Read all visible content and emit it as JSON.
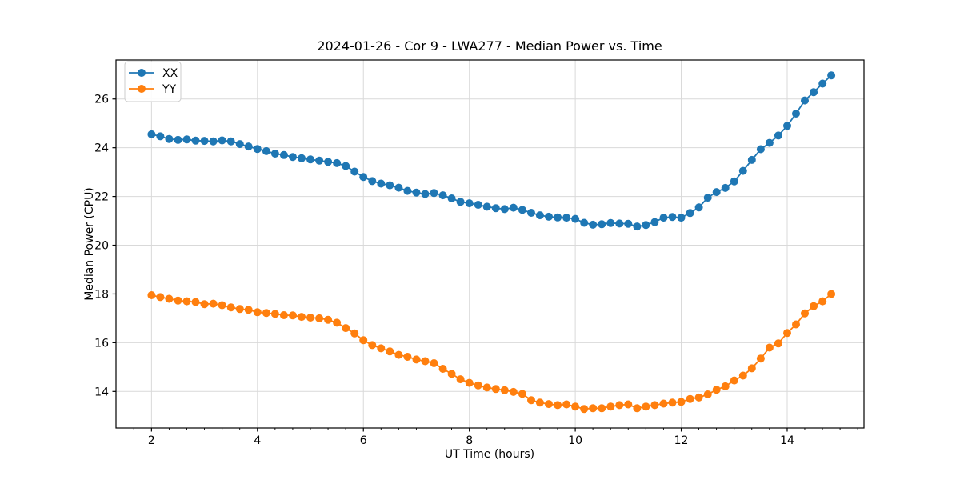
{
  "chart_data": {
    "type": "line",
    "title": "2024-01-26 - Cor 9 - LWA277 - Median Power vs. Time",
    "xlabel": "UT Time (hours)",
    "ylabel": "Median Power (CPU)",
    "xlim": [
      1.33,
      15.45
    ],
    "ylim": [
      12.5,
      27.6
    ],
    "xticks": [
      2,
      4,
      6,
      8,
      10,
      12,
      14
    ],
    "yticks": [
      14,
      16,
      18,
      20,
      22,
      24,
      26
    ],
    "minor_xtick_step": 0.3333,
    "grid": true,
    "grid_color": "#d9d9d9",
    "background_color": "#ffffff",
    "spine_color": "#000000",
    "marker": "circle",
    "marker_radius": 5,
    "line_width": 1.8,
    "legend": {
      "position": "upper left",
      "entries": [
        "XX",
        "YY"
      ]
    },
    "x": [
      2.0,
      2.167,
      2.333,
      2.5,
      2.667,
      2.833,
      3.0,
      3.167,
      3.333,
      3.5,
      3.667,
      3.833,
      4.0,
      4.167,
      4.333,
      4.5,
      4.667,
      4.833,
      5.0,
      5.167,
      5.333,
      5.5,
      5.667,
      5.833,
      6.0,
      6.167,
      6.333,
      6.5,
      6.667,
      6.833,
      7.0,
      7.167,
      7.333,
      7.5,
      7.667,
      7.833,
      8.0,
      8.167,
      8.333,
      8.5,
      8.667,
      8.833,
      9.0,
      9.167,
      9.333,
      9.5,
      9.667,
      9.833,
      10.0,
      10.167,
      10.333,
      10.5,
      10.667,
      10.833,
      11.0,
      11.167,
      11.333,
      11.5,
      11.667,
      11.833,
      12.0,
      12.167,
      12.333,
      12.5,
      12.667,
      12.833,
      13.0,
      13.167,
      13.333,
      13.5,
      13.667,
      13.833,
      14.0,
      14.167,
      14.333,
      14.5,
      14.667,
      14.833
    ],
    "series": [
      {
        "name": "XX",
        "color": "#1f77b4",
        "values": [
          24.55,
          24.47,
          24.36,
          24.32,
          24.34,
          24.29,
          24.28,
          24.26,
          24.3,
          24.26,
          24.15,
          24.05,
          23.95,
          23.86,
          23.76,
          23.7,
          23.62,
          23.57,
          23.52,
          23.47,
          23.42,
          23.37,
          23.25,
          23.02,
          22.8,
          22.63,
          22.53,
          22.46,
          22.36,
          22.23,
          22.16,
          22.1,
          22.14,
          22.05,
          21.92,
          21.78,
          21.72,
          21.66,
          21.58,
          21.52,
          21.48,
          21.54,
          21.45,
          21.33,
          21.23,
          21.17,
          21.14,
          21.13,
          21.08,
          20.92,
          20.84,
          20.86,
          20.91,
          20.89,
          20.88,
          20.77,
          20.83,
          20.95,
          21.13,
          21.16,
          21.13,
          21.32,
          21.55,
          21.95,
          22.18,
          22.35,
          22.62,
          23.05,
          23.5,
          23.94,
          24.2,
          24.5,
          24.9,
          25.4,
          25.94,
          26.28,
          26.63,
          26.97
        ]
      },
      {
        "name": "YY",
        "color": "#ff7f0e",
        "values": [
          17.95,
          17.87,
          17.8,
          17.73,
          17.7,
          17.67,
          17.58,
          17.6,
          17.54,
          17.45,
          17.38,
          17.35,
          17.25,
          17.22,
          17.18,
          17.13,
          17.12,
          17.06,
          17.03,
          17.0,
          16.94,
          16.82,
          16.6,
          16.38,
          16.1,
          15.9,
          15.77,
          15.64,
          15.5,
          15.42,
          15.31,
          15.24,
          15.16,
          14.93,
          14.72,
          14.5,
          14.35,
          14.25,
          14.16,
          14.1,
          14.05,
          13.98,
          13.9,
          13.64,
          13.54,
          13.48,
          13.44,
          13.47,
          13.38,
          13.28,
          13.31,
          13.31,
          13.38,
          13.44,
          13.47,
          13.31,
          13.38,
          13.44,
          13.5,
          13.54,
          13.57,
          13.69,
          13.75,
          13.88,
          14.07,
          14.21,
          14.45,
          14.65,
          14.95,
          15.35,
          15.8,
          15.97,
          16.4,
          16.75,
          17.2,
          17.5,
          17.7,
          18.0
        ]
      }
    ]
  }
}
